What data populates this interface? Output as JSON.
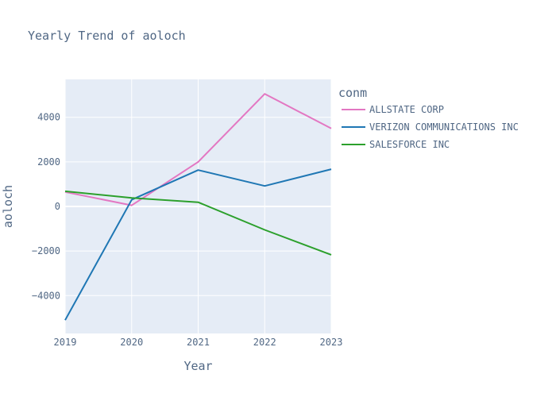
{
  "chart_data": {
    "type": "line",
    "title": "Yearly Trend of aoloch",
    "xlabel": "Year",
    "ylabel": "aoloch",
    "legend_title": "conm",
    "legend_position": "right",
    "grid": true,
    "x": [
      2019,
      2020,
      2021,
      2022,
      2023
    ],
    "xlim": [
      2019,
      2023
    ],
    "ylim": [
      -5700,
      5700
    ],
    "y_ticks": [
      -4000,
      -2000,
      0,
      2000,
      4000
    ],
    "y_tick_labels": [
      "−4000",
      "−2000",
      "0",
      "2000",
      "4000"
    ],
    "x_tick_labels": [
      "2019",
      "2020",
      "2021",
      "2022",
      "2023"
    ],
    "series": [
      {
        "name": "ALLSTATE CORP",
        "color": "#e377c2",
        "values": [
          650,
          50,
          2000,
          5050,
          3500
        ]
      },
      {
        "name": "VERIZON COMMUNICATIONS INC",
        "color": "#1f77b4",
        "values": [
          -5100,
          300,
          1630,
          920,
          1670
        ]
      },
      {
        "name": "SALESFORCE INC",
        "color": "#2ca02c",
        "values": [
          680,
          380,
          190,
          -1050,
          -2170
        ]
      }
    ]
  }
}
